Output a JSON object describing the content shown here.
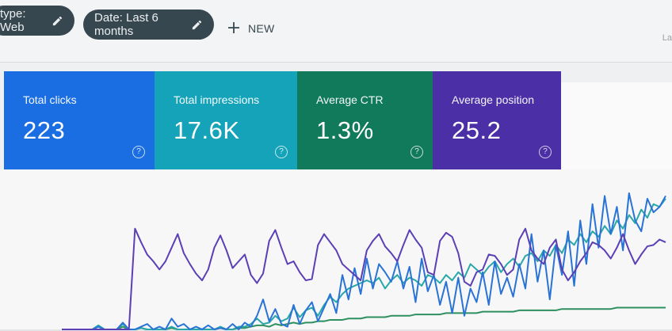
{
  "filters": {
    "type_label": "type: Web",
    "date_label": "Date: Last 6 months"
  },
  "new_button": {
    "label": "NEW"
  },
  "corner_label": "La",
  "metrics": [
    {
      "label": "Total clicks",
      "value": "223",
      "color": "#1a6ee2"
    },
    {
      "label": "Total impressions",
      "value": "17.6K",
      "color": "#14a3b8"
    },
    {
      "label": "Average CTR",
      "value": "1.3%",
      "color": "#117a5a"
    },
    {
      "label": "Average position",
      "value": "25.2",
      "color": "#4b2fa6"
    }
  ],
  "help_glyph": "?",
  "icons": [
    "edit-pencil-icon",
    "plus-icon",
    "help-circle-icon"
  ],
  "chart_data": {
    "type": "line",
    "x": [
      1,
      2,
      3,
      4,
      5,
      6,
      7,
      8,
      9,
      10,
      11,
      12,
      13,
      14,
      15,
      16,
      17,
      18,
      19,
      20,
      21,
      22,
      23,
      24,
      25,
      26,
      27,
      28,
      29,
      30,
      31,
      32,
      33,
      34,
      35,
      36,
      37,
      38,
      39,
      40,
      41,
      42,
      43,
      44,
      45,
      46,
      47,
      48,
      49,
      50,
      51,
      52,
      53,
      54,
      55,
      56,
      57,
      58,
      59,
      60,
      61,
      62,
      63,
      64,
      65,
      66,
      67,
      68,
      69,
      70,
      71,
      72,
      73,
      74,
      75,
      76,
      77,
      78,
      79,
      80,
      81,
      82,
      83,
      84,
      85,
      86,
      87,
      88,
      89,
      90,
      91,
      92,
      93,
      94,
      95,
      96,
      97,
      98,
      99,
      100
    ],
    "series": [
      {
        "color": "#5b3fb5",
        "values": [
          0,
          0,
          0,
          0,
          0,
          0,
          0,
          0,
          0,
          0,
          0,
          0,
          74,
          64,
          55,
          50,
          44,
          50,
          60,
          70,
          56,
          48,
          41,
          36,
          44,
          60,
          69,
          58,
          45,
          50,
          55,
          40,
          34,
          41,
          65,
          73,
          60,
          48,
          50,
          42,
          36,
          37,
          62,
          70,
          64,
          58,
          48,
          44,
          40,
          36,
          58,
          65,
          70,
          61,
          56,
          50,
          62,
          73,
          66,
          60,
          42,
          40,
          65,
          71,
          68,
          56,
          35,
          32,
          42,
          44,
          55,
          54,
          48,
          40,
          44,
          66,
          74,
          58,
          52,
          48,
          60,
          66,
          44,
          36,
          42,
          50,
          56,
          64,
          62,
          58,
          52,
          60,
          70,
          58,
          48,
          55,
          61,
          62,
          66,
          64
        ]
      },
      {
        "color": "#2a73d6",
        "values": [
          0,
          0,
          0,
          0,
          0,
          0,
          2,
          0,
          0,
          0,
          5,
          0,
          0,
          2,
          4,
          0,
          2,
          0,
          8,
          2,
          4,
          0,
          2,
          0,
          3,
          0,
          1,
          0,
          4,
          0,
          5,
          2,
          10,
          22,
          6,
          15,
          4,
          2,
          18,
          4,
          14,
          20,
          6,
          16,
          26,
          12,
          40,
          22,
          45,
          26,
          52,
          30,
          48,
          42,
          35,
          50,
          30,
          46,
          20,
          52,
          28,
          40,
          18,
          35,
          12,
          38,
          10,
          30,
          20,
          42,
          18,
          50,
          26,
          38,
          24,
          48,
          30,
          70,
          35,
          58,
          22,
          62,
          40,
          72,
          32,
          80,
          48,
          92,
          60,
          98,
          70,
          90,
          58,
          100,
          80,
          72,
          96,
          86,
          90,
          98
        ]
      },
      {
        "color": "#2aa7a9",
        "values": [
          0,
          0,
          0,
          0,
          0,
          0,
          3,
          0,
          0,
          0,
          4,
          0,
          0,
          1,
          0,
          0,
          0,
          0,
          2,
          0,
          0,
          0,
          0,
          0,
          0,
          0,
          2,
          0,
          0,
          2,
          2,
          4,
          8,
          4,
          5,
          10,
          6,
          8,
          16,
          9,
          14,
          16,
          10,
          18,
          24,
          20,
          26,
          30,
          32,
          34,
          36,
          34,
          38,
          30,
          36,
          40,
          34,
          38,
          36,
          32,
          40,
          38,
          34,
          40,
          36,
          42,
          38,
          48,
          44,
          40,
          46,
          50,
          42,
          48,
          52,
          46,
          54,
          56,
          50,
          58,
          54,
          62,
          56,
          66,
          62,
          70,
          64,
          72,
          68,
          76,
          70,
          80,
          74,
          84,
          78,
          88,
          82,
          92,
          90,
          96
        ]
      },
      {
        "color": "#2e8f5f",
        "values": [
          0,
          0,
          0,
          0,
          0,
          0,
          2,
          0,
          0,
          0,
          2,
          0,
          0,
          1,
          0,
          0,
          0,
          0,
          1,
          0,
          0,
          0,
          0,
          0,
          0,
          0,
          1,
          0,
          0,
          1,
          1,
          2,
          3,
          3,
          2,
          4,
          3,
          4,
          5,
          4,
          5,
          5,
          6,
          6,
          7,
          7,
          7,
          8,
          8,
          8,
          9,
          9,
          9,
          9,
          10,
          10,
          10,
          10,
          11,
          11,
          11,
          11,
          11,
          12,
          12,
          12,
          12,
          12,
          12,
          13,
          13,
          13,
          13,
          13,
          13,
          14,
          14,
          14,
          14,
          14,
          14,
          14,
          15,
          15,
          15,
          15,
          15,
          15,
          15,
          15,
          15,
          16,
          16,
          16,
          16,
          16,
          16,
          16,
          16,
          16
        ]
      }
    ]
  }
}
